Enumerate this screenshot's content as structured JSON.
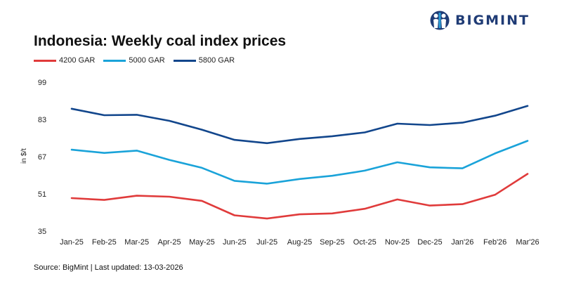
{
  "brand": {
    "name": "BIGMINT",
    "logo_color": "#1f3b75"
  },
  "source_text": "Source: BigMint | Last updated: 13-03-2026",
  "chart_data": {
    "type": "line",
    "title": "Indonesia: Weekly coal index prices",
    "ylabel": "in $/t",
    "xlabel": "",
    "categories": [
      "Jan-25",
      "Feb-25",
      "Mar-25",
      "Apr-25",
      "May-25",
      "Jun-25",
      "Jul-25",
      "Aug-25",
      "Sep-25",
      "Oct-25",
      "Nov-25",
      "Dec-25",
      "Jan'26",
      "Feb'26",
      "Mar'26"
    ],
    "yticks": [
      "99",
      "83",
      "67",
      "51",
      "35"
    ],
    "ylim": [
      35,
      99
    ],
    "grid": false,
    "legend_position": "top-left",
    "series": [
      {
        "name": "4200 GAR",
        "color": "#e03b3b",
        "values": [
          49.2,
          48.4,
          50.2,
          49.8,
          48.0,
          41.8,
          40.4,
          42.2,
          42.6,
          44.6,
          48.6,
          46.0,
          46.6,
          50.6,
          59.6
        ]
      },
      {
        "name": "5000 GAR",
        "color": "#1aa3d9",
        "values": [
          70.0,
          68.6,
          69.6,
          65.6,
          62.2,
          56.6,
          55.4,
          57.4,
          58.8,
          61.0,
          64.6,
          62.4,
          62.0,
          68.4,
          73.8
        ]
      },
      {
        "name": "5800 GAR",
        "color": "#12468c",
        "values": [
          87.6,
          84.8,
          85.0,
          82.4,
          78.6,
          74.2,
          72.8,
          74.6,
          75.8,
          77.4,
          81.2,
          80.6,
          81.6,
          84.6,
          88.8
        ]
      }
    ]
  }
}
